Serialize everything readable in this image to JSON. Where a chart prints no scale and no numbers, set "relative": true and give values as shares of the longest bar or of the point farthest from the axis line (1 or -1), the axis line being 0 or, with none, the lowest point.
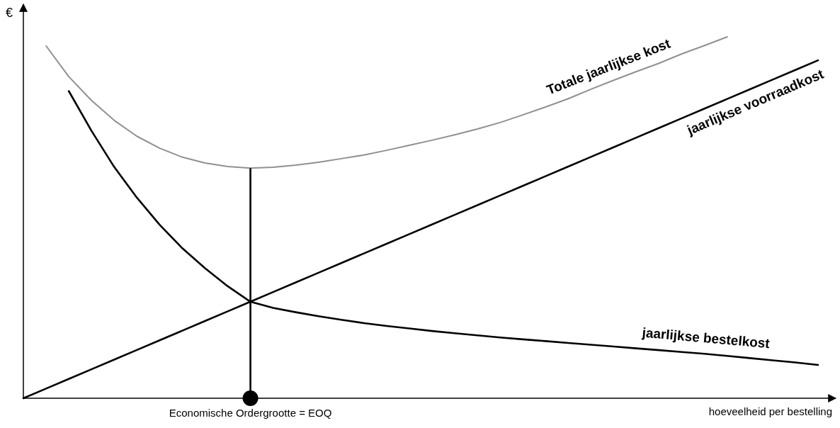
{
  "chart_data": {
    "type": "line",
    "relative": true,
    "xlabel": "hoeveelheid per bestelling",
    "ylabel": "€",
    "legend": false,
    "line_style": "solid",
    "annotations": [
      "Economische Ordergrootte = EOQ"
    ],
    "categories": [
      null,
      null,
      null,
      null,
      null,
      null,
      null,
      null,
      null,
      null,
      null,
      null,
      null,
      null,
      null,
      null,
      null,
      null,
      null,
      null,
      null,
      null,
      null,
      null,
      null,
      null,
      null,
      null,
      null,
      null,
      null,
      null,
      null,
      null,
      null,
      null
    ],
    "series": [
      {
        "name": "Totale jaarlijkse kost",
        "color": "#909090",
        "values": [
          null,
          0.975,
          0.89,
          0.824,
          0.769,
          0.725,
          0.692,
          0.667,
          0.651,
          0.641,
          0.637,
          0.639,
          0.645,
          0.653,
          0.663,
          0.673,
          0.686,
          0.7,
          0.714,
          0.729,
          0.745,
          0.763,
          0.784,
          0.806,
          0.829,
          0.855,
          0.88,
          0.904,
          0.927,
          0.953,
          0.976,
          1,
          null,
          null,
          null,
          null
        ]
      },
      {
        "name": "jaarlijkse voorraadkost",
        "color": "#000000",
        "values": [
          0,
          0.0267,
          0.0534,
          0.0801,
          0.1069,
          0.1336,
          0.1603,
          0.187,
          0.2137,
          0.2404,
          0.2671,
          0.2939,
          0.3206,
          0.3473,
          0.374,
          0.4007,
          0.4274,
          0.4541,
          0.4809,
          0.5076,
          0.5343,
          0.561,
          0.5877,
          0.6144,
          0.6411,
          0.6679,
          0.6946,
          0.7213,
          0.748,
          0.7747,
          0.8014,
          0.8281,
          0.8549,
          0.8816,
          0.9083,
          0.935
        ]
      },
      {
        "name": "jaarlijkse bestelkost",
        "color": "#000000",
        "values": [
          null,
          null,
          0.85,
          0.74,
          0.64,
          0.555,
          0.48,
          0.415,
          0.36,
          0.31,
          0.267,
          0.25,
          0.238,
          0.227,
          0.217,
          0.208,
          0.2,
          0.193,
          0.186,
          0.18,
          0.174,
          0.168,
          0.163,
          0.158,
          0.153,
          0.148,
          0.143,
          0.138,
          0.133,
          0.128,
          0.123,
          0.117,
          0.111,
          0.105,
          0.099,
          0.092
        ]
      }
    ]
  }
}
